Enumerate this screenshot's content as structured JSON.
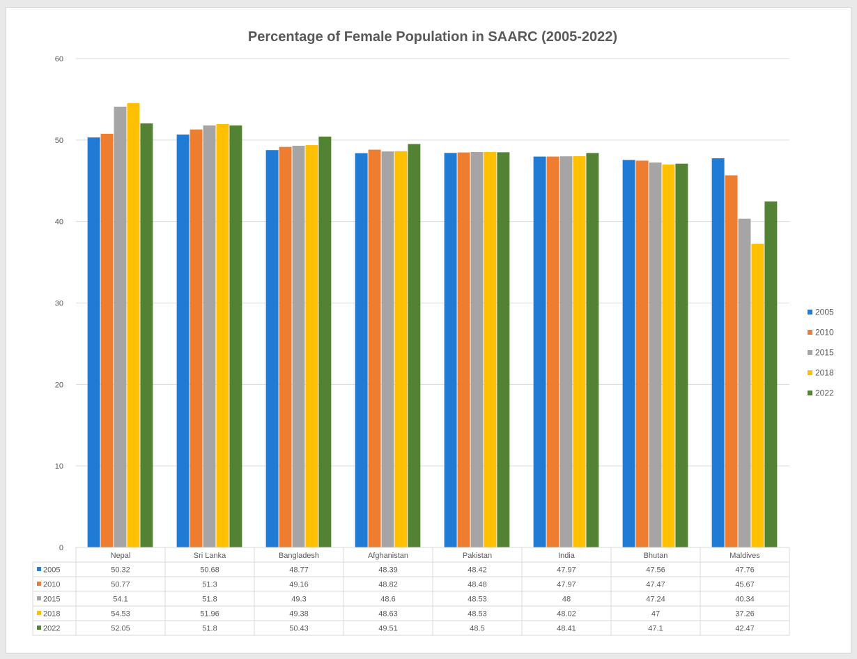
{
  "chart_data": {
    "type": "bar",
    "title": "Percentage of Female Population in SAARC (2005-2022)",
    "xlabel": "",
    "ylabel": "",
    "ylim": [
      0,
      60
    ],
    "yticks": [
      "0",
      "10",
      "20",
      "30",
      "40",
      "50",
      "60"
    ],
    "grid": true,
    "legend_position": "right",
    "categories": [
      "Nepal",
      "Sri Lanka",
      "Bangladesh",
      "Afghanistan",
      "Pakistan",
      "India",
      "Bhutan",
      "Maldives"
    ],
    "series": [
      {
        "name": "2005",
        "color": "#1f7bd6",
        "values": [
          50.32,
          50.68,
          48.77,
          48.39,
          48.42,
          47.97,
          47.56,
          47.76
        ],
        "labels": [
          "50.32",
          "50.68",
          "48.77",
          "48.39",
          "48.42",
          "47.97",
          "47.56",
          "47.76"
        ]
      },
      {
        "name": "2010",
        "color": "#ed7d31",
        "values": [
          50.77,
          51.3,
          49.16,
          48.82,
          48.48,
          47.97,
          47.47,
          45.67
        ],
        "labels": [
          "50.77",
          "51.3",
          "49.16",
          "48.82",
          "48.48",
          "47.97",
          "47.47",
          "45.67"
        ]
      },
      {
        "name": "2015",
        "color": "#a5a5a5",
        "values": [
          54.1,
          51.8,
          49.3,
          48.6,
          48.53,
          48,
          47.24,
          40.34
        ],
        "labels": [
          "54.1",
          "51.8",
          "49.3",
          "48.6",
          "48.53",
          "48",
          "47.24",
          "40.34"
        ]
      },
      {
        "name": "2018",
        "color": "#ffc000",
        "values": [
          54.53,
          51.96,
          49.38,
          48.63,
          48.53,
          48.02,
          47,
          37.26
        ],
        "labels": [
          "54.53",
          "51.96",
          "49.38",
          "48.63",
          "48.53",
          "48.02",
          "47",
          "37.26"
        ]
      },
      {
        "name": "2022",
        "color": "#548235",
        "values": [
          52.05,
          51.8,
          50.43,
          49.51,
          48.5,
          48.41,
          47.1,
          42.47
        ],
        "labels": [
          "52.05",
          "51.8",
          "50.43",
          "49.51",
          "48.5",
          "48.41",
          "47.1",
          "42.47"
        ]
      }
    ]
  }
}
